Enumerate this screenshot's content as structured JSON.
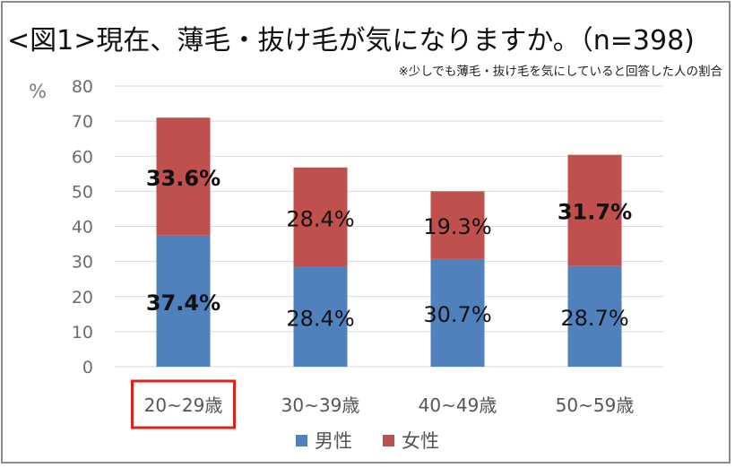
{
  "title": "<図1>現在、薄毛・抜け毛が気になりますか。（n=398)",
  "subtitle": "※少しでも薄毛・抜け毛を気にしていると回答した人の割合",
  "unit_label": "%",
  "colors": {
    "male": "#4f81bd",
    "female": "#c0504d",
    "highlight": "#e0211b",
    "grid": "#d9d9d9",
    "axis_text": "#6b6b6b"
  },
  "chart_data": {
    "type": "bar",
    "stacked": true,
    "categories": [
      "20~29歳",
      "30~39歳",
      "40~49歳",
      "50~59歳"
    ],
    "series": [
      {
        "name": "男性",
        "values": [
          37.4,
          28.4,
          30.7,
          28.7
        ],
        "labels": [
          "37.4%",
          "28.4%",
          "30.7%",
          "28.7%"
        ],
        "bold": [
          true,
          false,
          false,
          false
        ]
      },
      {
        "name": "女性",
        "values": [
          33.6,
          28.4,
          19.3,
          31.7
        ],
        "labels": [
          "33.6%",
          "28.4%",
          "19.3%",
          "31.7%"
        ],
        "bold": [
          true,
          false,
          false,
          true
        ]
      }
    ],
    "ylim": [
      0,
      80
    ],
    "yticks": [
      0,
      10,
      20,
      30,
      40,
      50,
      60,
      70,
      80
    ],
    "grid": true,
    "highlighted_category": "20~29歳",
    "legend_position": "bottom"
  }
}
